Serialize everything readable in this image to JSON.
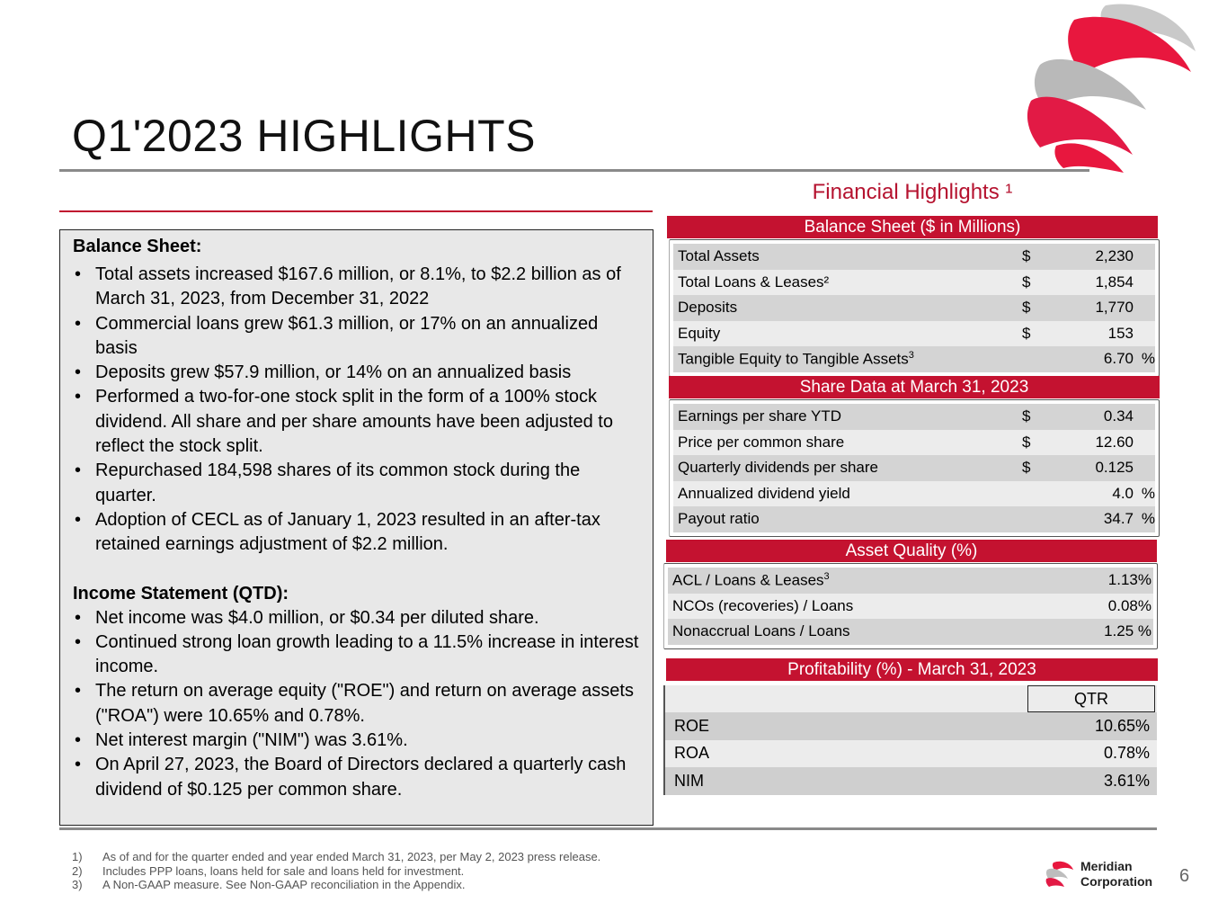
{
  "title": "Q1'2023 HIGHLIGHTS",
  "financial_highlights_title": "Financial Highlights ¹",
  "left": {
    "balance_heading": "Balance Sheet:",
    "balance_items": [
      "Total assets increased $167.6 million, or 8.1%, to $2.2 billion as of March 31, 2023, from December 31, 2022",
      "Commercial loans grew $61.3 million, or 17% on an annualized basis",
      "Deposits grew $57.9 million, or 14% on an annualized basis",
      "Performed a two-for-one stock split in the form of a 100% stock dividend. All share and per share amounts have been adjusted to reflect the stock split.",
      "Repurchased 184,598 shares of its common stock during the quarter.",
      "Adoption of CECL as of January 1, 2023 resulted in an after-tax retained earnings adjustment of $2.2 million."
    ],
    "income_heading": "Income Statement (QTD):",
    "income_items": [
      "Net income was $4.0 million, or $0.34 per diluted share.",
      "Continued strong loan growth leading to a 11.5% increase in interest income.",
      "The return on average equity (\"ROE\") and return on average assets (\"ROA\") were 10.65% and 0.78%.",
      "Net interest margin (\"NIM\") was 3.61%.",
      "On April 27, 2023, the Board of Directors declared a quarterly cash dividend of $0.125 per common share."
    ]
  },
  "balance_sheet": {
    "header": "Balance Sheet ($ in Millions)",
    "rows": [
      {
        "label": "Total Assets",
        "dollar": "$",
        "value": "2,230",
        "pct": ""
      },
      {
        "label": "Total Loans & Leases²",
        "dollar": "$",
        "value": "1,854",
        "pct": ""
      },
      {
        "label": "Deposits",
        "dollar": "$",
        "value": "1,770",
        "pct": ""
      },
      {
        "label": "Equity",
        "dollar": "$",
        "value": "153",
        "pct": ""
      },
      {
        "label": "Tangible Equity to Tangible Assets",
        "sup": "3",
        "dollar": "",
        "value": "6.70",
        "pct": "%"
      }
    ]
  },
  "share_data": {
    "header": "Share Data at March 31, 2023",
    "rows": [
      {
        "label": "Earnings per share YTD",
        "dollar": "$",
        "value": "0.34",
        "pct": ""
      },
      {
        "label": "Price per common share",
        "dollar": "$",
        "value": "12.60",
        "pct": ""
      },
      {
        "label": "Quarterly dividends per share",
        "dollar": "$",
        "value": "0.125",
        "pct": ""
      },
      {
        "label": "Annualized dividend yield",
        "dollar": "",
        "value": "4.0",
        "pct": "%"
      },
      {
        "label": "Payout ratio",
        "dollar": "",
        "value": "34.7",
        "pct": "%"
      }
    ]
  },
  "asset_quality": {
    "header": "Asset Quality (%)",
    "rows": [
      {
        "label": "ACL / Loans & Leases",
        "sup": "3",
        "value": "1.13%"
      },
      {
        "label": "NCOs (recoveries) / Loans",
        "value": "0.08%"
      },
      {
        "label": "Nonaccrual Loans / Loans",
        "value": "1.25 %"
      }
    ]
  },
  "profitability": {
    "header": "Profitability (%) - March 31, 2023",
    "column": "QTR",
    "rows": [
      {
        "label": "ROE",
        "value": "10.65%"
      },
      {
        "label": "ROA",
        "value": "0.78%"
      },
      {
        "label": "NIM",
        "value": "3.61%"
      }
    ]
  },
  "footnotes": [
    {
      "n": "1)",
      "text": "As of and for the quarter ended and year ended  March 31, 2023, per May 2, 2023 press release."
    },
    {
      "n": "2)",
      "text": "Includes PPP loans, loans held for sale and loans held for investment."
    },
    {
      "n": "3)",
      "text": "A Non-GAAP measure. See Non-GAAP reconciliation in the Appendix."
    }
  ],
  "brand": {
    "line1": "Meridian",
    "line2": "Corporation"
  },
  "page_number": "6",
  "colors": {
    "accent": "#c41230",
    "rule": "#8a8a8a",
    "box": "#e8e8e8"
  }
}
